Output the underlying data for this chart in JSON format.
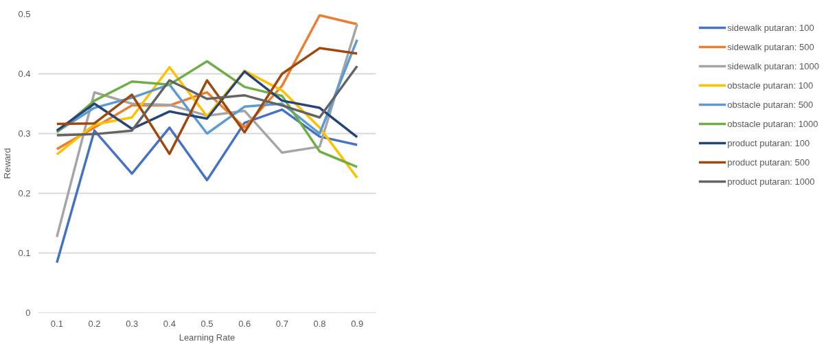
{
  "chart_data": {
    "type": "line",
    "xlabel": "Learning Rate",
    "ylabel": "Reward",
    "categories": [
      "0.1",
      "0.2",
      "0.3",
      "0.4",
      "0.5",
      "0.6",
      "0.7",
      "0.8",
      "0.9"
    ],
    "ylim": [
      0,
      0.5
    ],
    "yticks": [
      0,
      0.1,
      0.2,
      0.3,
      0.4,
      0.5
    ],
    "grid": "y",
    "legend": "right",
    "marker": "none",
    "line_style": "solid",
    "series": [
      {
        "name": "sidewalk putaran: 100",
        "color": "#4472c4",
        "values": [
          0.084,
          0.305,
          0.233,
          0.31,
          0.222,
          0.318,
          0.34,
          0.295,
          0.281
        ]
      },
      {
        "name": "sidewalk putaran: 500",
        "color": "#ed7d31",
        "values": [
          0.274,
          0.31,
          0.347,
          0.347,
          0.369,
          0.31,
          0.38,
          0.498,
          0.483
        ]
      },
      {
        "name": "sidewalk putaran: 1000",
        "color": "#a5a5a5",
        "values": [
          0.127,
          0.369,
          0.35,
          0.348,
          0.33,
          0.338,
          0.268,
          0.278,
          0.483
        ]
      },
      {
        "name": "obstacle putaran: 100",
        "color": "#ffc000",
        "values": [
          0.265,
          0.315,
          0.327,
          0.411,
          0.329,
          0.405,
          0.372,
          0.31,
          0.226
        ]
      },
      {
        "name": "obstacle putaran: 500",
        "color": "#5b9bd5",
        "values": [
          0.303,
          0.343,
          0.36,
          0.382,
          0.3,
          0.345,
          0.35,
          0.3,
          0.457
        ]
      },
      {
        "name": "obstacle putaran: 1000",
        "color": "#70ad47",
        "values": [
          0.302,
          0.355,
          0.387,
          0.382,
          0.421,
          0.378,
          0.363,
          0.27,
          0.244
        ]
      },
      {
        "name": "product putaran: 100",
        "color": "#264478",
        "values": [
          0.305,
          0.35,
          0.308,
          0.337,
          0.325,
          0.404,
          0.355,
          0.343,
          0.294
        ]
      },
      {
        "name": "product putaran: 500",
        "color": "#9e480e",
        "values": [
          0.316,
          0.317,
          0.365,
          0.266,
          0.389,
          0.302,
          0.4,
          0.443,
          0.434
        ]
      },
      {
        "name": "product putaran: 1000",
        "color": "#636363",
        "values": [
          0.297,
          0.299,
          0.305,
          0.389,
          0.358,
          0.364,
          0.347,
          0.327,
          0.413
        ]
      }
    ]
  }
}
